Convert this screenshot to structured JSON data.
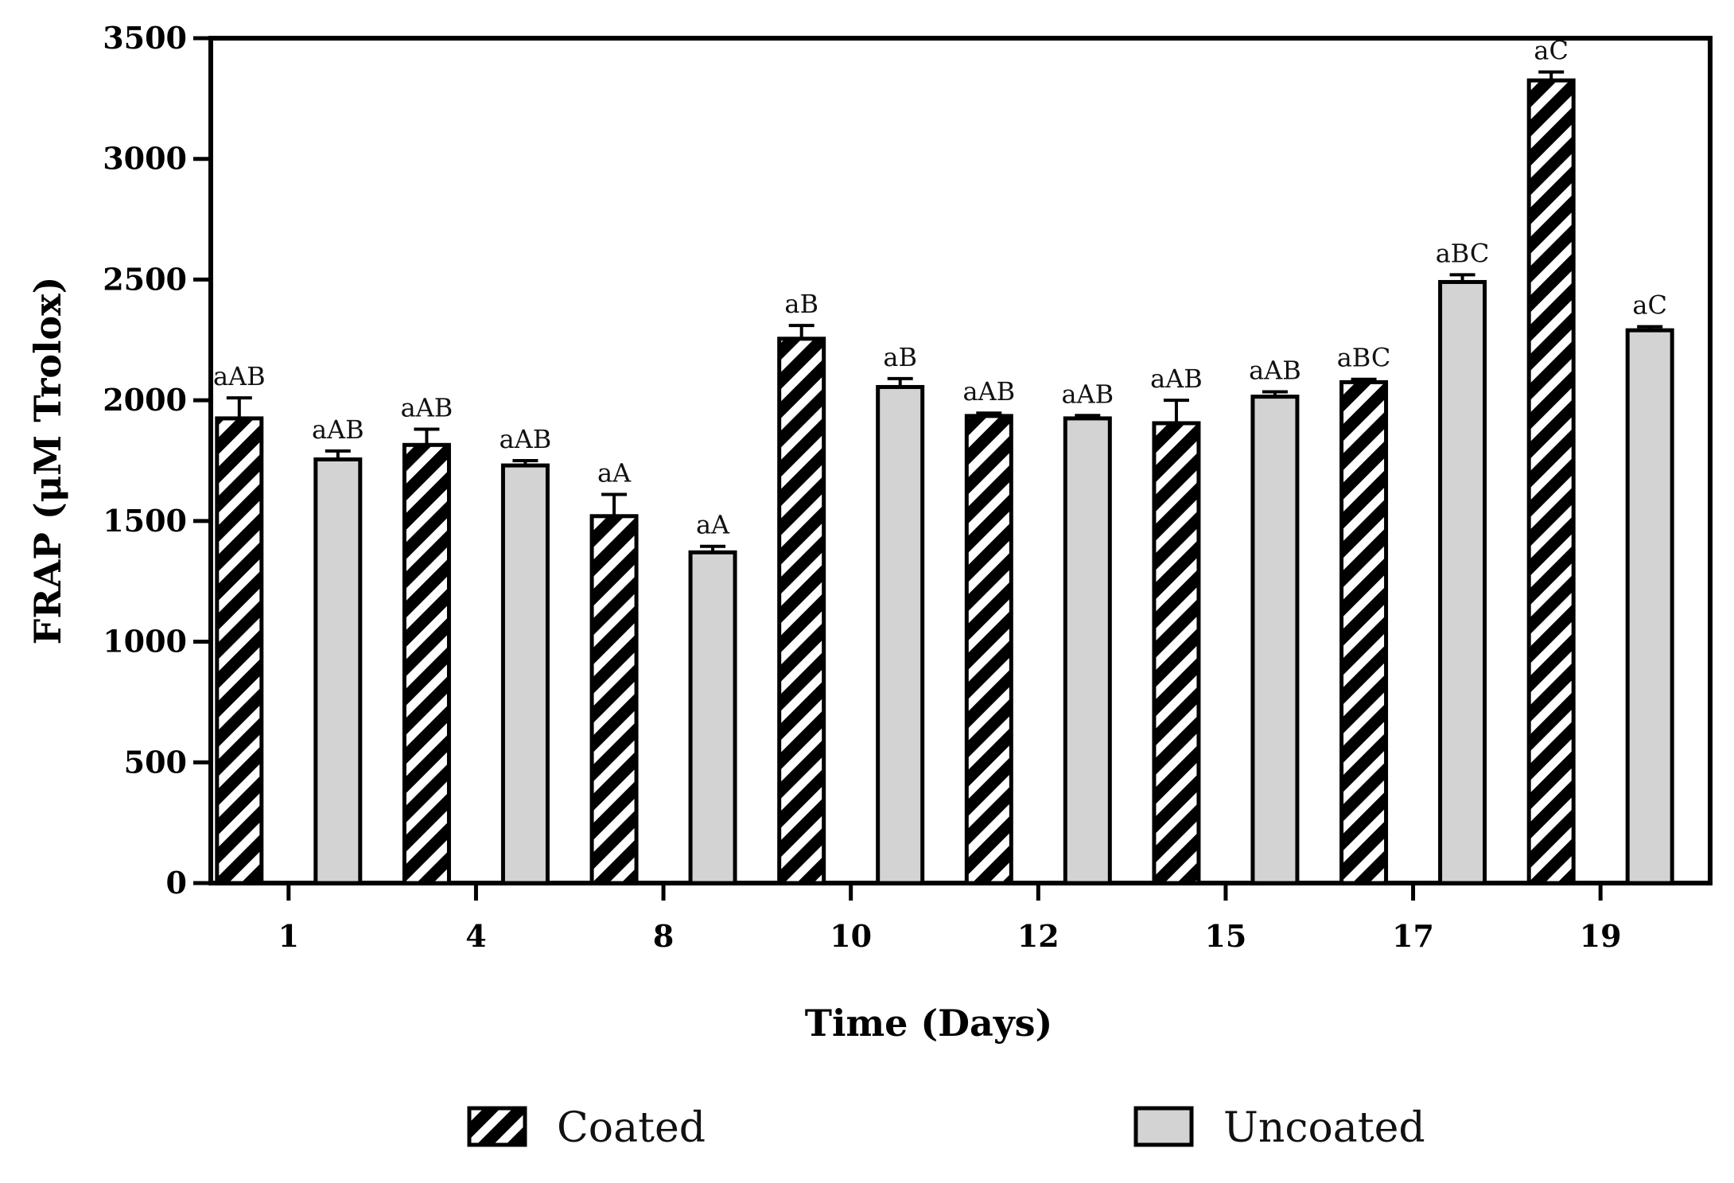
{
  "chart_data": {
    "type": "bar",
    "title": "",
    "xlabel": "Time (Days)",
    "ylabel": "FRAP (μM Trolox)",
    "ylim": [
      0,
      3500
    ],
    "yticks": [
      0,
      500,
      1000,
      1500,
      2000,
      2500,
      3000,
      3500
    ],
    "categories": [
      "1",
      "4",
      "8",
      "10",
      "12",
      "15",
      "17",
      "19"
    ],
    "series": [
      {
        "name": "Coated",
        "pattern": "hatched",
        "fill": "#000000",
        "stripe": "#ffffff",
        "values": [
          1925,
          1815,
          1520,
          2255,
          1935,
          1905,
          2075,
          3325
        ],
        "errors": [
          85,
          65,
          90,
          55,
          12,
          95,
          12,
          35
        ],
        "labels": [
          "aAB",
          "aAB",
          "aA",
          "aB",
          "aAB",
          "aAB",
          "aBC",
          "aC"
        ]
      },
      {
        "name": "Uncoated",
        "pattern": "solid",
        "fill": "#d3d3d3",
        "values": [
          1755,
          1730,
          1370,
          2055,
          1925,
          2015,
          2490,
          2290
        ],
        "errors": [
          35,
          20,
          25,
          35,
          12,
          20,
          30,
          15
        ],
        "labels": [
          "aAB",
          "aAB",
          "aA",
          "aB",
          "aAB",
          "aAB",
          "aBC",
          "aC"
        ]
      }
    ],
    "legend_position": "bottom"
  }
}
